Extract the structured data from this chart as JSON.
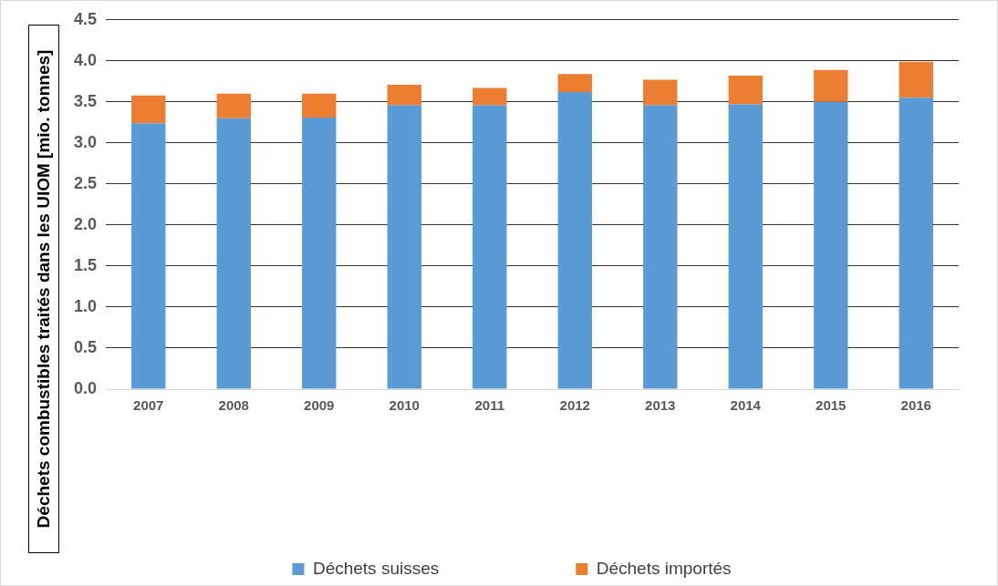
{
  "chart_data": {
    "type": "bar",
    "stacked": true,
    "ylabel": "Déchets combustibles traités dans les UIOM [mio. tonnes]",
    "categories": [
      "2007",
      "2008",
      "2009",
      "2010",
      "2011",
      "2012",
      "2013",
      "2014",
      "2015",
      "2016"
    ],
    "series": [
      {
        "name": "Déchets suisses",
        "color": "#5b9bd5",
        "values": [
          3.24,
          3.3,
          3.31,
          3.46,
          3.46,
          3.62,
          3.46,
          3.47,
          3.5,
          3.55
        ]
      },
      {
        "name": "Déchets importés",
        "color": "#ed7d31",
        "values": [
          0.34,
          0.3,
          0.29,
          0.25,
          0.21,
          0.22,
          0.31,
          0.35,
          0.39,
          0.44
        ]
      }
    ],
    "ylim": [
      0,
      4.5
    ],
    "yticks": [
      {
        "value": 0,
        "label": "0.0"
      },
      {
        "value": 0.5,
        "label": "0.5"
      },
      {
        "value": 1,
        "label": "1.0"
      },
      {
        "value": 1.5,
        "label": "1.5"
      },
      {
        "value": 2,
        "label": "2.0"
      },
      {
        "value": 2.5,
        "label": "2.5"
      },
      {
        "value": 3,
        "label": "3.0"
      },
      {
        "value": 3.5,
        "label": "3.5"
      },
      {
        "value": 4,
        "label": "4.0"
      },
      {
        "value": 4.5,
        "label": "4.5"
      }
    ],
    "grid": "y",
    "legend": "bottom"
  }
}
